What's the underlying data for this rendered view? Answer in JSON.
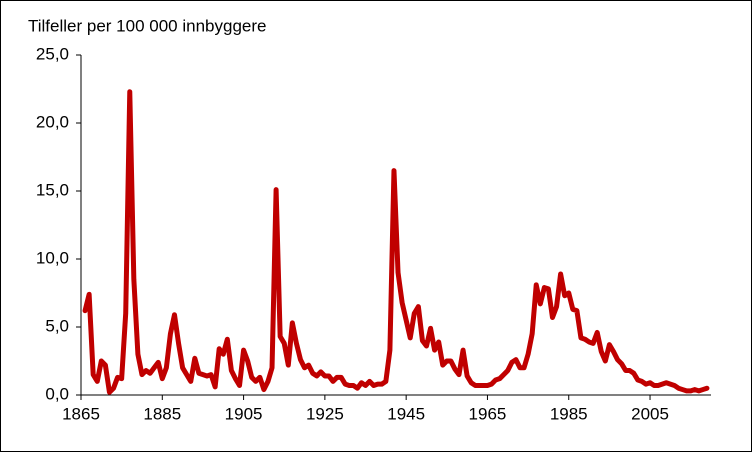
{
  "chart_data": {
    "type": "line",
    "title": "Tilfeller per 100 000 innbyggere",
    "x": [
      1866,
      1867,
      1868,
      1869,
      1870,
      1871,
      1872,
      1873,
      1874,
      1875,
      1876,
      1877,
      1878,
      1879,
      1880,
      1881,
      1882,
      1883,
      1884,
      1885,
      1886,
      1887,
      1888,
      1889,
      1890,
      1891,
      1892,
      1893,
      1894,
      1895,
      1896,
      1897,
      1898,
      1899,
      1900,
      1901,
      1902,
      1903,
      1904,
      1905,
      1906,
      1907,
      1908,
      1909,
      1910,
      1911,
      1912,
      1913,
      1914,
      1915,
      1916,
      1917,
      1918,
      1919,
      1920,
      1921,
      1922,
      1923,
      1924,
      1925,
      1926,
      1927,
      1928,
      1929,
      1930,
      1931,
      1932,
      1933,
      1934,
      1935,
      1936,
      1937,
      1938,
      1939,
      1940,
      1941,
      1942,
      1943,
      1944,
      1945,
      1946,
      1947,
      1948,
      1949,
      1950,
      1951,
      1952,
      1953,
      1954,
      1955,
      1956,
      1957,
      1958,
      1959,
      1960,
      1961,
      1962,
      1963,
      1964,
      1965,
      1966,
      1967,
      1968,
      1969,
      1970,
      1971,
      1972,
      1973,
      1974,
      1975,
      1976,
      1977,
      1978,
      1979,
      1980,
      1981,
      1982,
      1983,
      1984,
      1985,
      1986,
      1987,
      1988,
      1989,
      1990,
      1991,
      1992,
      1993,
      1994,
      1995,
      1996,
      1997,
      1998,
      1999,
      2000,
      2001,
      2002,
      2003,
      2004,
      2005,
      2006,
      2007,
      2008,
      2009,
      2010,
      2011,
      2012,
      2013,
      2014,
      2015,
      2016,
      2017,
      2018,
      2019
    ],
    "values": [
      6.2,
      7.4,
      1.5,
      1.0,
      2.5,
      2.2,
      0.2,
      0.5,
      1.3,
      1.2,
      6.0,
      22.3,
      8.5,
      3.0,
      1.5,
      1.8,
      1.6,
      2.0,
      2.4,
      1.2,
      2.0,
      4.5,
      5.9,
      3.8,
      2.0,
      1.5,
      1.0,
      2.7,
      1.6,
      1.5,
      1.4,
      1.5,
      0.6,
      3.4,
      3.0,
      4.1,
      1.8,
      1.2,
      0.7,
      3.3,
      2.5,
      1.3,
      1.0,
      1.3,
      0.4,
      1.0,
      2.0,
      15.1,
      4.3,
      3.8,
      2.2,
      5.3,
      3.8,
      2.6,
      2.0,
      2.2,
      1.6,
      1.4,
      1.7,
      1.4,
      1.4,
      1.0,
      1.3,
      1.3,
      0.8,
      0.7,
      0.7,
      0.5,
      0.9,
      0.7,
      1.0,
      0.7,
      0.8,
      0.8,
      1.0,
      3.3,
      16.5,
      9.0,
      6.8,
      5.5,
      4.2,
      6.0,
      6.5,
      4.0,
      3.6,
      4.9,
      3.3,
      3.9,
      2.2,
      2.5,
      2.5,
      1.9,
      1.5,
      3.3,
      1.4,
      0.9,
      0.7,
      0.7,
      0.7,
      0.7,
      0.8,
      1.1,
      1.2,
      1.5,
      1.8,
      2.4,
      2.6,
      2.0,
      2.0,
      3.0,
      4.5,
      8.1,
      6.7,
      7.9,
      7.8,
      5.7,
      6.5,
      8.9,
      7.3,
      7.5,
      6.3,
      6.2,
      4.2,
      4.1,
      3.9,
      3.8,
      4.6,
      3.2,
      2.5,
      3.7,
      3.2,
      2.6,
      2.3,
      1.8,
      1.8,
      1.6,
      1.1,
      1.0,
      0.8,
      0.9,
      0.7,
      0.7,
      0.8,
      0.9,
      0.8,
      0.7,
      0.5,
      0.4,
      0.3,
      0.3,
      0.4,
      0.3,
      0.4,
      0.5
    ],
    "color": "#c00000",
    "xlim": [
      1865,
      2020
    ],
    "xticks": [
      1865,
      1885,
      1905,
      1925,
      1945,
      1965,
      1985,
      2005
    ],
    "ylim": [
      0,
      25
    ],
    "yticks": [
      {
        "value": 0,
        "label": "0,0"
      },
      {
        "value": 5,
        "label": "5,0"
      },
      {
        "value": 10,
        "label": "10,0"
      },
      {
        "value": 15,
        "label": "15,0"
      },
      {
        "value": 20,
        "label": "20,0"
      },
      {
        "value": 25,
        "label": "25,0"
      }
    ],
    "grid": false
  }
}
